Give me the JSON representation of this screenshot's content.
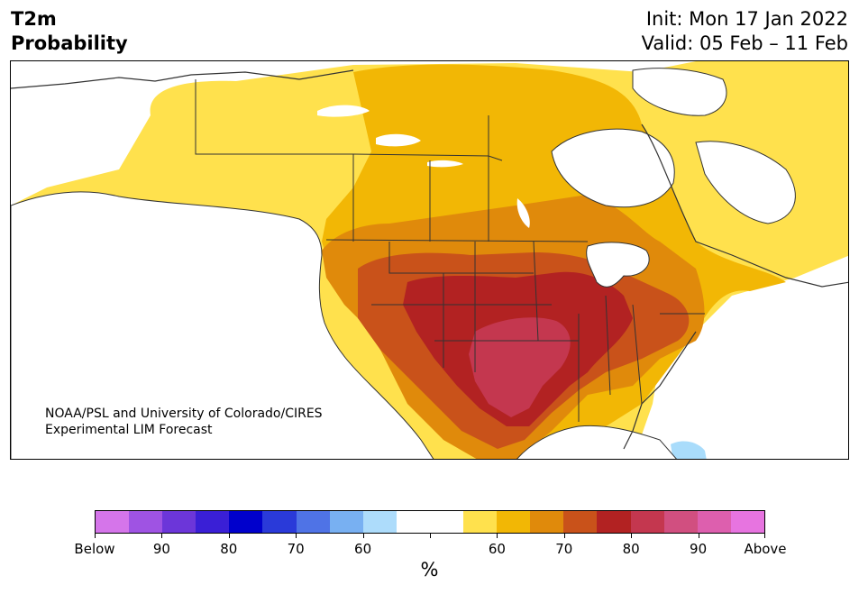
{
  "header": {
    "title_line1": "T2m",
    "title_line2": "Probability",
    "init_text": "Init: Mon 17 Jan 2022",
    "valid_text": "Valid: 05 Feb – 11 Feb"
  },
  "map": {
    "credit_line1": "NOAA/PSL and University of Colorado/CIRES",
    "credit_line2": "Experimental LIM Forecast",
    "colors": {
      "above_50_60": "#ffe14d",
      "above_60_65": "#f2b705",
      "above_65_70": "#e08a0b",
      "above_70_75": "#c9521a",
      "above_75_80": "#b22222",
      "above_80_85": "#c4374f",
      "below_50_60": "#a9dcfb",
      "land_border": "#333333",
      "water": "#ffffff"
    }
  },
  "colorbar": {
    "colors": [
      "#d575ea",
      "#9f53e3",
      "#6c36d9",
      "#3a1fd6",
      "#0000cc",
      "#2a3ad9",
      "#4f73e6",
      "#78b0f2",
      "#addcfb",
      "#ffffff",
      "#ffffff",
      "#ffe14d",
      "#f2b705",
      "#e08a0b",
      "#c9521a",
      "#b22222",
      "#c4374f",
      "#d14f80",
      "#dd5fae",
      "#e774e0"
    ],
    "labels": [
      "Below",
      "90",
      "80",
      "70",
      "60",
      "",
      "60",
      "70",
      "80",
      "90",
      "Above"
    ],
    "unit": "%"
  }
}
